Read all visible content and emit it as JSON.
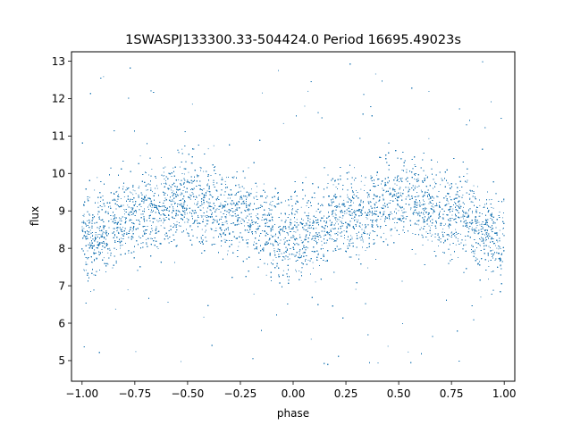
{
  "chart_data": {
    "type": "scatter",
    "title": "1SWASPJ133300.33-504424.0 Period 16695.49023s",
    "xlabel": "phase",
    "ylabel": "flux",
    "xlim": [
      -1.05,
      1.05
    ],
    "ylim": [
      4.45,
      13.25
    ],
    "xticks": [
      -1.0,
      -0.75,
      -0.5,
      -0.25,
      0.0,
      0.25,
      0.5,
      0.75,
      1.0
    ],
    "xtick_labels": [
      "−1.00",
      "−0.75",
      "−0.50",
      "−0.25",
      "0.00",
      "0.25",
      "0.50",
      "0.75",
      "1.00"
    ],
    "yticks": [
      5,
      6,
      7,
      8,
      9,
      10,
      11,
      12,
      13
    ],
    "ytick_labels": [
      "5",
      "6",
      "7",
      "8",
      "9",
      "10",
      "11",
      "12",
      "13"
    ],
    "grid": false,
    "legend": "none",
    "point_color": "#1f77b4",
    "series_profile": {
      "phase": [
        -1.0,
        -0.75,
        -0.5,
        -0.25,
        0.0,
        0.25,
        0.5,
        0.75,
        1.0
      ],
      "mean_flux": [
        8.2,
        8.9,
        9.3,
        8.9,
        8.2,
        8.9,
        9.3,
        8.9,
        8.2
      ]
    },
    "point_count_estimate": 24000,
    "scatter_flux_range": [
      4.8,
      13.0
    ]
  }
}
